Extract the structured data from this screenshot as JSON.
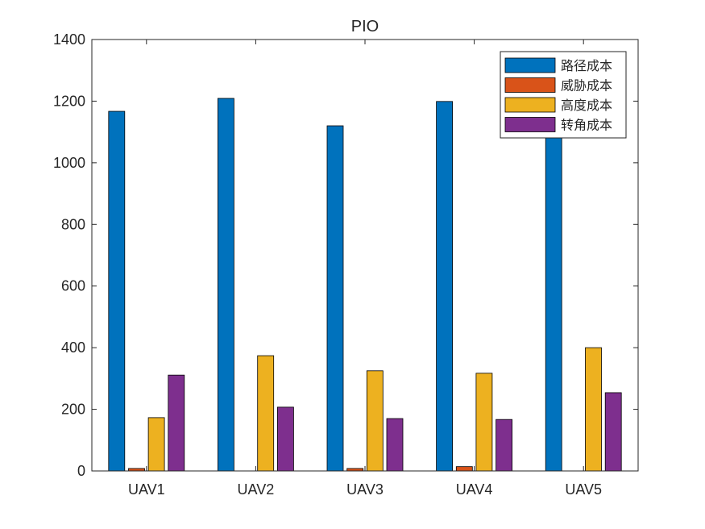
{
  "chart_data": {
    "type": "bar",
    "title": "PIO",
    "xlabel": "",
    "ylabel": "",
    "categories": [
      "UAV1",
      "UAV2",
      "UAV3",
      "UAV4",
      "UAV5"
    ],
    "ylim": [
      0,
      1400
    ],
    "yticks": [
      0,
      200,
      400,
      600,
      800,
      1000,
      1200,
      1400
    ],
    "grid": false,
    "legend_position": "top-right",
    "series": [
      {
        "name": "路径成本",
        "color": "#0072BD",
        "values": [
          1167,
          1209,
          1120,
          1199,
          1150
        ]
      },
      {
        "name": "威胁成本",
        "color": "#D95319",
        "values": [
          8,
          0,
          8,
          14,
          0
        ]
      },
      {
        "name": "高度成本",
        "color": "#EDB120",
        "values": [
          173,
          374,
          325,
          317,
          400
        ]
      },
      {
        "name": "转角成本",
        "color": "#7E2F8E",
        "values": [
          311,
          207,
          170,
          167,
          254
        ]
      }
    ]
  }
}
